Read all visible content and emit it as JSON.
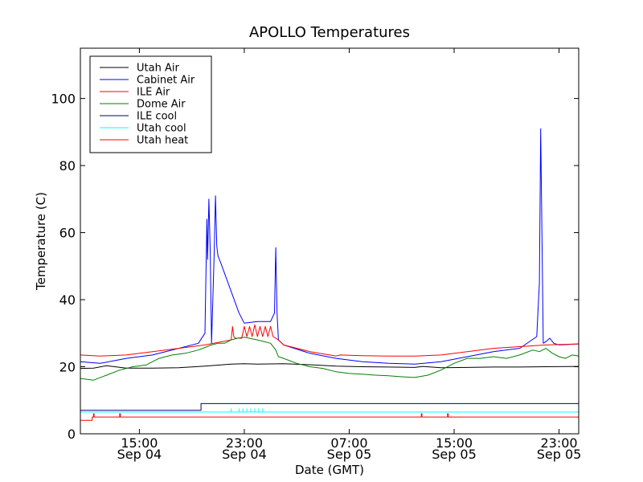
{
  "chart_data": {
    "type": "line",
    "title": "APOLLO Temperatures",
    "xlabel": "Date (GMT)",
    "ylabel": "Temperature (C)",
    "xlim": [
      10.5,
      48.5
    ],
    "ylim": [
      0,
      115
    ],
    "legend_position": "top-left",
    "y_ticks": [
      {
        "value": 0,
        "label": "0"
      },
      {
        "value": 20,
        "label": "20"
      },
      {
        "value": 40,
        "label": "40"
      },
      {
        "value": 60,
        "label": "60"
      },
      {
        "value": 80,
        "label": "80"
      },
      {
        "value": 100,
        "label": "100"
      }
    ],
    "x_ticks": [
      {
        "value": 15,
        "line1": "15:00",
        "line2": "Sep 04"
      },
      {
        "value": 23,
        "line1": "23:00",
        "line2": "Sep 04"
      },
      {
        "value": 31,
        "line1": "07:00",
        "line2": "Sep 05"
      },
      {
        "value": 39,
        "line1": "15:00",
        "line2": "Sep 05"
      },
      {
        "value": 47,
        "line1": "23:00",
        "line2": "Sep 05"
      }
    ],
    "series": [
      {
        "name": "Utah Air",
        "color": "#000000",
        "x": [
          10.5,
          11.5,
          12.5,
          14.0,
          16.0,
          18.0,
          20.0,
          22.0,
          23.0,
          24.0,
          26.0,
          28.0,
          30.0,
          32.0,
          34.0,
          36.0,
          36.6,
          38.0,
          40.0,
          42.0,
          44.0,
          46.0,
          48.5
        ],
        "y": [
          19.5,
          19.6,
          20.3,
          19.6,
          19.6,
          19.7,
          20.2,
          20.8,
          20.9,
          20.8,
          20.9,
          20.6,
          20.2,
          20.0,
          19.9,
          19.8,
          20.1,
          19.7,
          19.8,
          19.9,
          19.9,
          20.0,
          20.1
        ]
      },
      {
        "name": "Cabinet Air",
        "color": "#0000ff",
        "x": [
          10.5,
          12.0,
          14.0,
          16.0,
          18.0,
          19.5,
          20.0,
          20.15,
          20.2,
          20.3,
          20.4,
          20.5,
          20.7,
          20.8,
          20.9,
          21.0,
          21.2,
          22.6,
          23.0,
          24.0,
          25.0,
          25.3,
          25.4,
          25.5,
          25.6,
          26.0,
          28.0,
          30.0,
          32.0,
          34.0,
          36.0,
          38.0,
          40.0,
          42.0,
          44.0,
          45.3,
          45.5,
          45.6,
          45.7,
          45.8,
          46.0,
          46.3,
          46.6,
          47.0,
          48.5
        ],
        "y": [
          21.5,
          21.0,
          22.5,
          23.5,
          25.5,
          27.0,
          30.0,
          64.0,
          52.0,
          70.0,
          55.0,
          27.0,
          53.0,
          71.0,
          56.0,
          53.0,
          51.0,
          36.0,
          33.0,
          33.5,
          33.5,
          36.0,
          55.5,
          36.0,
          28.0,
          26.5,
          24.0,
          22.5,
          21.5,
          21.0,
          20.8,
          21.5,
          23.0,
          24.5,
          25.5,
          29.0,
          45.0,
          91.0,
          59.0,
          27.0,
          27.5,
          28.5,
          27.0,
          26.5,
          26.8
        ]
      },
      {
        "name": "ILE Air",
        "color": "#ff0000",
        "x": [
          10.5,
          12.0,
          14.0,
          16.0,
          18.0,
          20.0,
          22.0,
          22.1,
          22.2,
          22.3,
          22.8,
          23.0,
          23.2,
          23.4,
          23.6,
          23.8,
          24.0,
          24.2,
          24.4,
          24.6,
          24.8,
          25.0,
          25.2,
          25.6,
          26.0,
          28.0,
          30.0,
          30.3,
          32.0,
          34.0,
          36.0,
          38.0,
          40.0,
          42.0,
          44.0,
          46.0,
          48.5
        ],
        "y": [
          23.5,
          23.2,
          23.5,
          24.5,
          25.5,
          26.5,
          28.0,
          32.0,
          29.0,
          28.5,
          28.5,
          32.0,
          29.0,
          32.0,
          29.0,
          32.5,
          29.0,
          32.0,
          29.0,
          32.0,
          29.0,
          32.0,
          29.0,
          28.0,
          26.5,
          24.5,
          23.2,
          23.5,
          23.3,
          23.2,
          23.2,
          23.5,
          24.5,
          25.5,
          26.0,
          26.5,
          26.8
        ]
      },
      {
        "name": "Dome Air",
        "color": "#008000",
        "x": [
          10.5,
          11.5,
          12.5,
          13.5,
          14.5,
          15.5,
          16.5,
          17.5,
          18.5,
          19.5,
          20.5,
          21.0,
          21.5,
          22.0,
          22.5,
          23.0,
          24.0,
          25.0,
          25.4,
          25.6,
          26.0,
          27.0,
          28.0,
          29.0,
          30.0,
          31.0,
          32.0,
          33.0,
          34.0,
          35.0,
          36.0,
          37.0,
          38.0,
          39.0,
          40.0,
          41.0,
          42.0,
          43.0,
          44.0,
          45.0,
          45.5,
          46.0,
          46.5,
          47.0,
          47.5,
          48.0,
          48.5
        ],
        "y": [
          16.5,
          16.0,
          17.5,
          19.0,
          20.0,
          20.5,
          22.5,
          23.5,
          24.0,
          25.0,
          26.5,
          27.0,
          27.0,
          28.0,
          28.5,
          28.8,
          28.0,
          27.0,
          25.0,
          23.0,
          22.5,
          21.0,
          20.0,
          19.5,
          18.5,
          18.0,
          17.8,
          17.5,
          17.3,
          17.0,
          16.8,
          17.5,
          19.0,
          21.0,
          22.5,
          22.5,
          23.0,
          22.5,
          23.5,
          25.0,
          24.5,
          25.5,
          24.0,
          23.0,
          22.5,
          23.5,
          23.2
        ]
      },
      {
        "name": "ILE cool",
        "color": "#000080",
        "x": [
          10.5,
          19.7,
          19.7,
          48.5
        ],
        "y": [
          7.0,
          7.0,
          9.0,
          9.0
        ]
      },
      {
        "name": "Utah cool",
        "color": "#00ffff",
        "x": [
          10.5,
          22.0,
          22.0,
          22.0,
          22.6,
          22.6,
          22.6,
          22.9,
          22.9,
          22.9,
          23.2,
          23.2,
          23.2,
          23.5,
          23.5,
          23.5,
          23.8,
          23.8,
          23.8,
          24.1,
          24.1,
          24.1,
          24.4,
          24.4,
          24.4,
          48.5
        ],
        "y": [
          6.5,
          6.5,
          7.5,
          6.5,
          6.5,
          7.5,
          6.5,
          6.5,
          7.5,
          6.5,
          6.5,
          7.5,
          6.5,
          6.5,
          7.5,
          6.5,
          6.5,
          7.5,
          6.5,
          6.5,
          7.5,
          6.5,
          6.5,
          7.5,
          6.5,
          6.5
        ]
      },
      {
        "name": "Utah heat",
        "color": "#ff0000",
        "x": [
          10.5,
          11.4,
          11.4,
          11.5,
          11.5,
          11.55,
          11.55,
          13.5,
          13.5,
          13.55,
          13.55,
          36.5,
          36.5,
          36.55,
          36.55,
          38.5,
          38.5,
          38.55,
          38.55,
          48.5
        ],
        "y": [
          4.0,
          4.0,
          5.0,
          5.0,
          6.0,
          6.0,
          5.0,
          5.0,
          6.0,
          6.0,
          5.0,
          5.0,
          6.0,
          6.0,
          5.0,
          5.0,
          6.0,
          6.0,
          5.0,
          5.0
        ]
      }
    ]
  }
}
